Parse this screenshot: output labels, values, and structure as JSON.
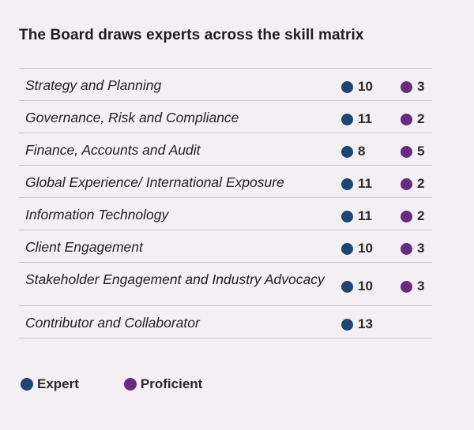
{
  "title": "The Board draws experts across the skill matrix",
  "colors": {
    "expert": "#1d4674",
    "proficient": "#6a2a80",
    "background": "#f3eff3"
  },
  "rows": [
    {
      "label": "Strategy and Planning",
      "expert": "10",
      "proficient": "3"
    },
    {
      "label": "Governance, Risk and Compliance",
      "expert": "11",
      "proficient": "2"
    },
    {
      "label": "Finance, Accounts and Audit",
      "expert": "8",
      "proficient": "5"
    },
    {
      "label": "Global Experience/ International Exposure",
      "expert": "11",
      "proficient": "2"
    },
    {
      "label": "Information Technology",
      "expert": "11",
      "proficient": "2"
    },
    {
      "label": "Client Engagement",
      "expert": "10",
      "proficient": "3"
    },
    {
      "label": "Stakeholder Engagement and Industry Advocacy",
      "expert": "10",
      "proficient": "3"
    },
    {
      "label": "Contributor and Collaborator",
      "expert": "13",
      "proficient": null
    }
  ],
  "legend": {
    "expert": "Expert",
    "proficient": "Proficient"
  }
}
